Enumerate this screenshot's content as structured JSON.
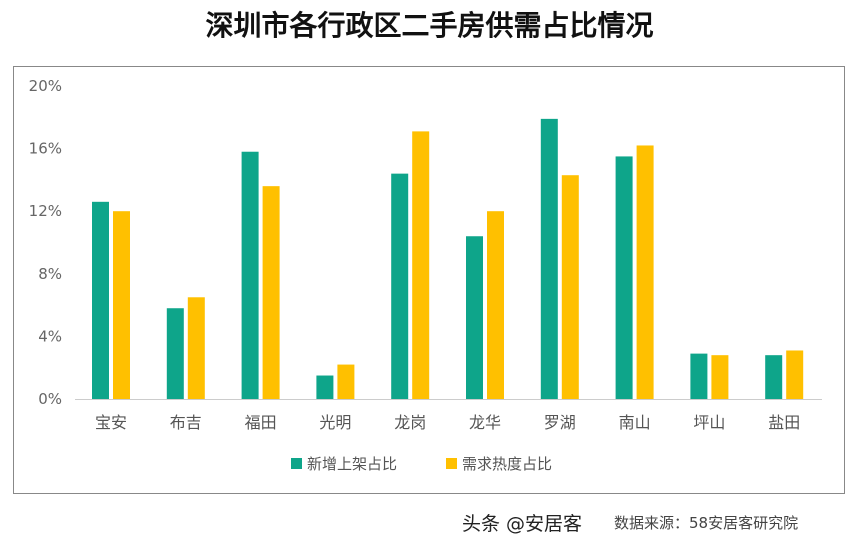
{
  "chart_data": {
    "type": "bar",
    "title": "深圳市各行政区二手房供需占比情况",
    "categories": [
      "宝安",
      "布吉",
      "福田",
      "光明",
      "龙岗",
      "龙华",
      "罗湖",
      "南山",
      "坪山",
      "盐田"
    ],
    "series": [
      {
        "name": "新增上架占比",
        "color": "#0ea58a",
        "values": [
          12.6,
          5.8,
          15.8,
          1.5,
          14.4,
          10.4,
          17.9,
          15.5,
          2.9,
          2.8
        ]
      },
      {
        "name": "需求热度占比",
        "color": "#ffc000",
        "values": [
          12.0,
          6.5,
          13.6,
          2.2,
          17.1,
          12.0,
          14.3,
          16.2,
          2.8,
          3.1
        ]
      }
    ],
    "yticks": [
      "0%",
      "4%",
      "8%",
      "12%",
      "16%",
      "20%"
    ],
    "ylim": [
      0,
      20
    ],
    "grid": false,
    "legend": "bottom"
  },
  "source": "数据来源：58安居客研究院",
  "watermark": "头条 @安居客"
}
